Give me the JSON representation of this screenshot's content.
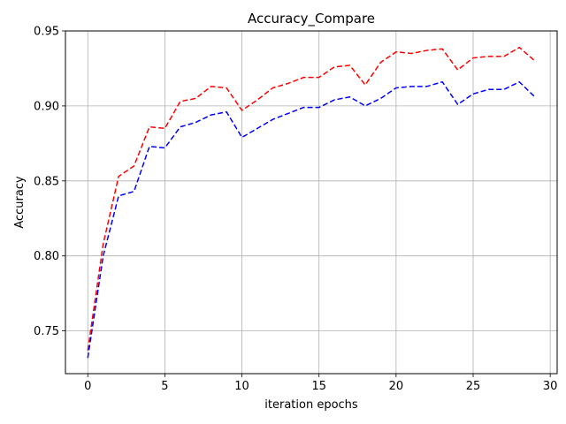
{
  "chart_data": {
    "type": "line",
    "title": "Accuracy_Compare",
    "xlabel": "iteration epochs",
    "ylabel": "Accuracy",
    "xlim": [
      -1.45,
      30.45
    ],
    "ylim": [
      0.7215,
      0.95
    ],
    "xticks": [
      0,
      5,
      10,
      15,
      20,
      25,
      30
    ],
    "yticks": [
      0.75,
      0.8,
      0.85,
      0.9,
      0.95
    ],
    "xtick_labels": [
      "0",
      "5",
      "10",
      "15",
      "20",
      "25",
      "30"
    ],
    "ytick_labels": [
      "0.75",
      "0.80",
      "0.85",
      "0.90",
      "0.95"
    ],
    "grid": true,
    "x": [
      0,
      1,
      2,
      3,
      4,
      5,
      6,
      7,
      8,
      9,
      10,
      11,
      12,
      13,
      14,
      15,
      16,
      17,
      18,
      19,
      20,
      21,
      22,
      23,
      24,
      25,
      26,
      27,
      28,
      29
    ],
    "series": [
      {
        "color": "#ff0000",
        "linestyle": "dashed",
        "values": [
          0.737,
          0.808,
          0.853,
          0.86,
          0.886,
          0.885,
          0.903,
          0.905,
          0.913,
          0.912,
          0.897,
          0.904,
          0.912,
          0.915,
          0.919,
          0.919,
          0.926,
          0.927,
          0.914,
          0.929,
          0.936,
          0.935,
          0.937,
          0.938,
          0.924,
          0.932,
          0.933,
          0.933,
          0.939,
          0.93
        ]
      },
      {
        "color": "#0000ff",
        "linestyle": "dashed",
        "values": [
          0.732,
          0.8,
          0.84,
          0.843,
          0.873,
          0.872,
          0.886,
          0.889,
          0.894,
          0.896,
          0.879,
          0.885,
          0.891,
          0.895,
          0.899,
          0.899,
          0.904,
          0.906,
          0.9,
          0.905,
          0.912,
          0.913,
          0.913,
          0.916,
          0.901,
          0.908,
          0.911,
          0.911,
          0.916,
          0.906
        ]
      }
    ]
  }
}
